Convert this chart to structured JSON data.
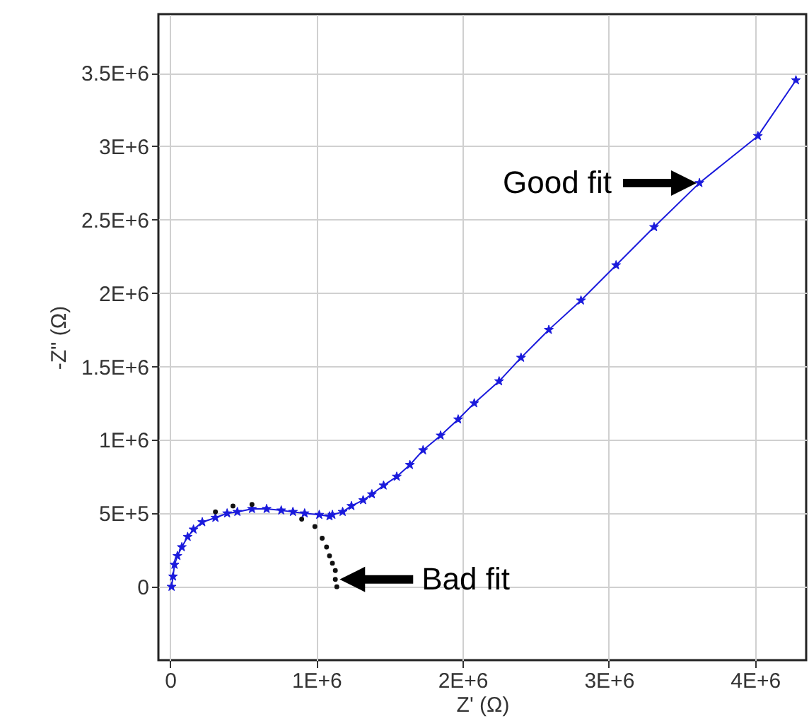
{
  "chart_data": {
    "type": "line",
    "xlabel": "Z' (Ω)",
    "ylabel": "-Z'' (Ω)",
    "xlim": [
      -80000,
      4350000
    ],
    "ylim": [
      -500000,
      3900000
    ],
    "xticks": [
      0,
      {
        "value": 1000000,
        "label": "1E+6"
      },
      {
        "value": 2000000,
        "label": "2E+6"
      },
      {
        "value": 3000000,
        "label": "3E+6"
      },
      {
        "value": 4000000,
        "label": "4E+6"
      }
    ],
    "yticks": [
      0,
      {
        "value": 500000,
        "label": "5E+5"
      },
      {
        "value": 1000000,
        "label": "1E+6"
      },
      {
        "value": 1500000,
        "label": "1.5E+6"
      },
      {
        "value": 2000000,
        "label": "2E+6"
      },
      {
        "value": 2500000,
        "label": "2.5E+6"
      },
      {
        "value": 3000000,
        "label": "3E+6"
      },
      {
        "value": 3500000,
        "label": "3.5E+6"
      }
    ],
    "grid": true,
    "marker": "star",
    "line_style": "solid",
    "series": [
      {
        "color": "#1a1adc",
        "x": [
          10000,
          20000,
          30000,
          50000,
          80000,
          120000,
          160000,
          220000,
          310000,
          390000,
          460000,
          560000,
          660000,
          760000,
          840000,
          920000,
          1020000,
          1090000,
          1110000,
          1180000,
          1240000,
          1320000,
          1380000,
          1460000,
          1550000,
          1640000,
          1730000,
          1850000,
          1970000,
          2080000,
          2250000,
          2400000,
          2590000,
          2810000,
          3050000,
          3310000,
          3620000,
          4020000,
          4280000
        ],
        "values": [
          0,
          70000,
          150000,
          210000,
          270000,
          340000,
          390000,
          440000,
          470000,
          500000,
          510000,
          530000,
          530000,
          520000,
          510000,
          500000,
          490000,
          480000,
          490000,
          510000,
          550000,
          590000,
          630000,
          690000,
          750000,
          830000,
          930000,
          1030000,
          1140000,
          1250000,
          1400000,
          1560000,
          1750000,
          1950000,
          2190000,
          2450000,
          2750000,
          3070000,
          3450000
        ]
      },
      {
        "type": "scatter",
        "color": "#111111",
        "marker": "circle",
        "x": [
          310000,
          430000,
          560000,
          900000,
          990000,
          1040000,
          1070000,
          1090000,
          1110000,
          1130000,
          1130000,
          1140000
        ],
        "values": [
          510000,
          550000,
          560000,
          460000,
          410000,
          330000,
          270000,
          210000,
          160000,
          110000,
          50000,
          0
        ]
      }
    ],
    "annotations": [
      {
        "text": "Good fit",
        "x": 3620000,
        "y": 2750000
      },
      {
        "text": "Bad fit",
        "x": 1140000,
        "y": 50000
      }
    ]
  }
}
